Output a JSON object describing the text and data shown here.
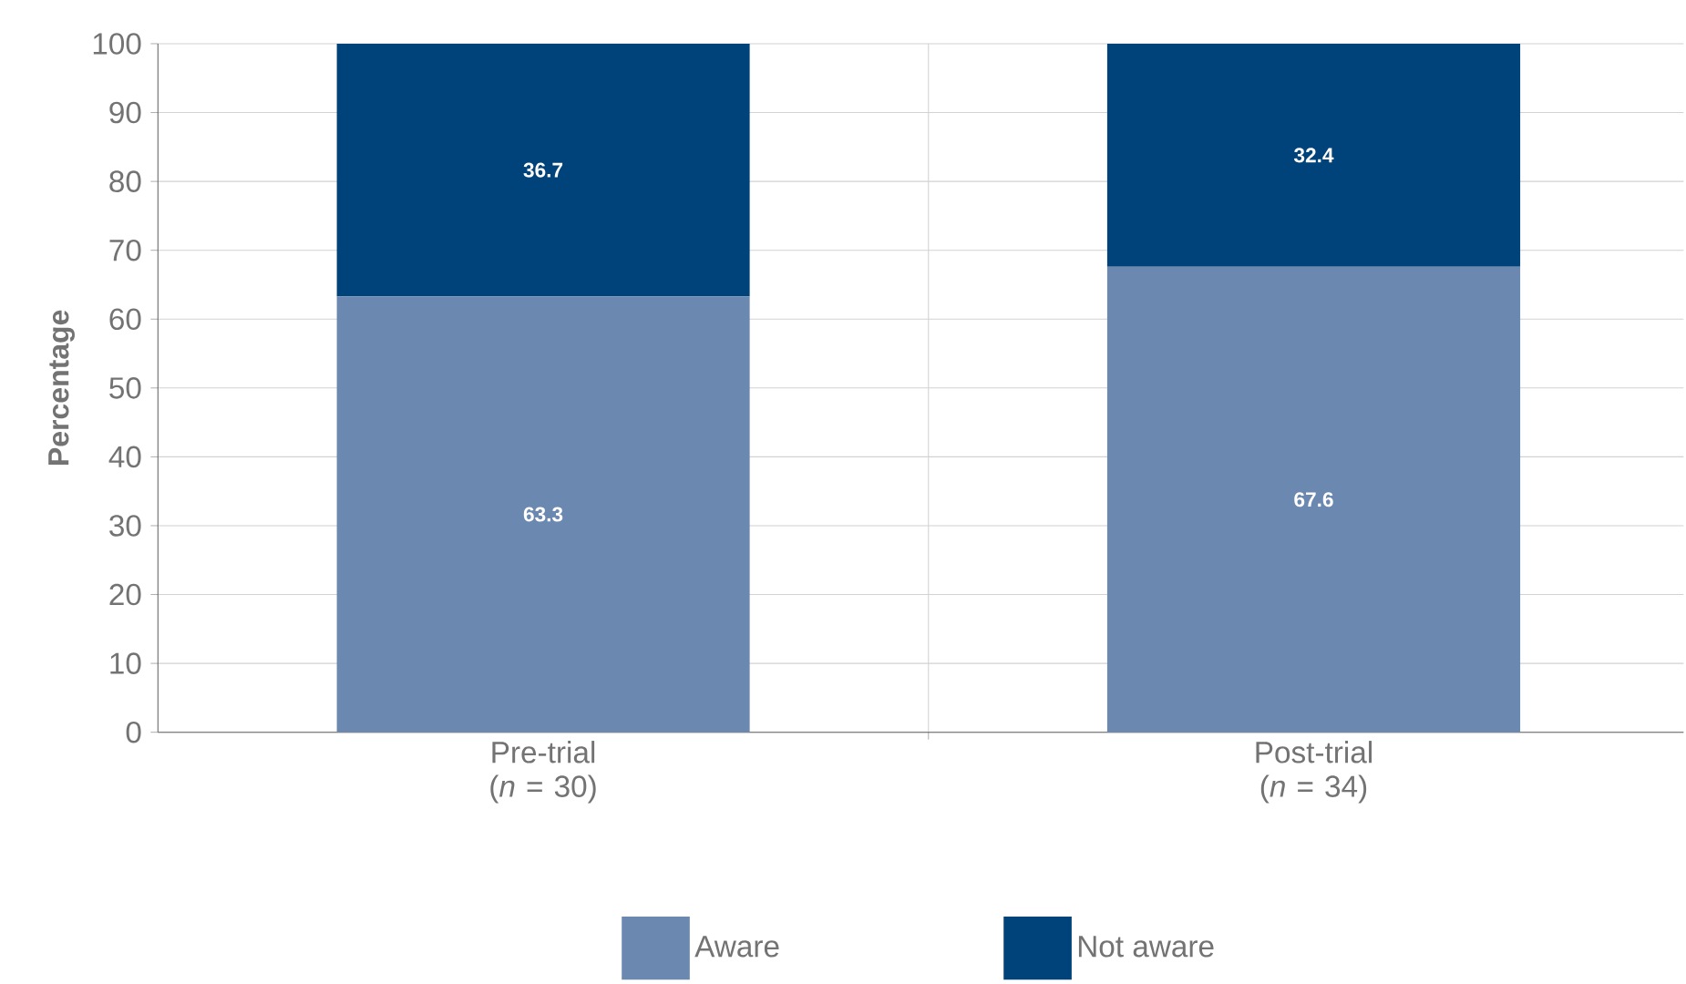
{
  "chart_data": {
    "type": "bar",
    "stacked": true,
    "ylabel": "Percentage",
    "categories": [
      "Pre-trial (*n* = 30)",
      "Post-trial (*n* = 34)"
    ],
    "series": [
      {
        "name": "Aware",
        "color": "#6b88b0",
        "values": [
          63.3,
          67.6
        ]
      },
      {
        "name": "Not aware",
        "color": "#00427a",
        "values": [
          36.7,
          32.4
        ]
      }
    ],
    "ylim": [
      0,
      100
    ],
    "yticks": [
      0,
      10,
      20,
      30,
      40,
      50,
      60,
      70,
      80,
      90,
      100
    ],
    "grid": true,
    "legend": "bottom",
    "data_labels": true
  }
}
